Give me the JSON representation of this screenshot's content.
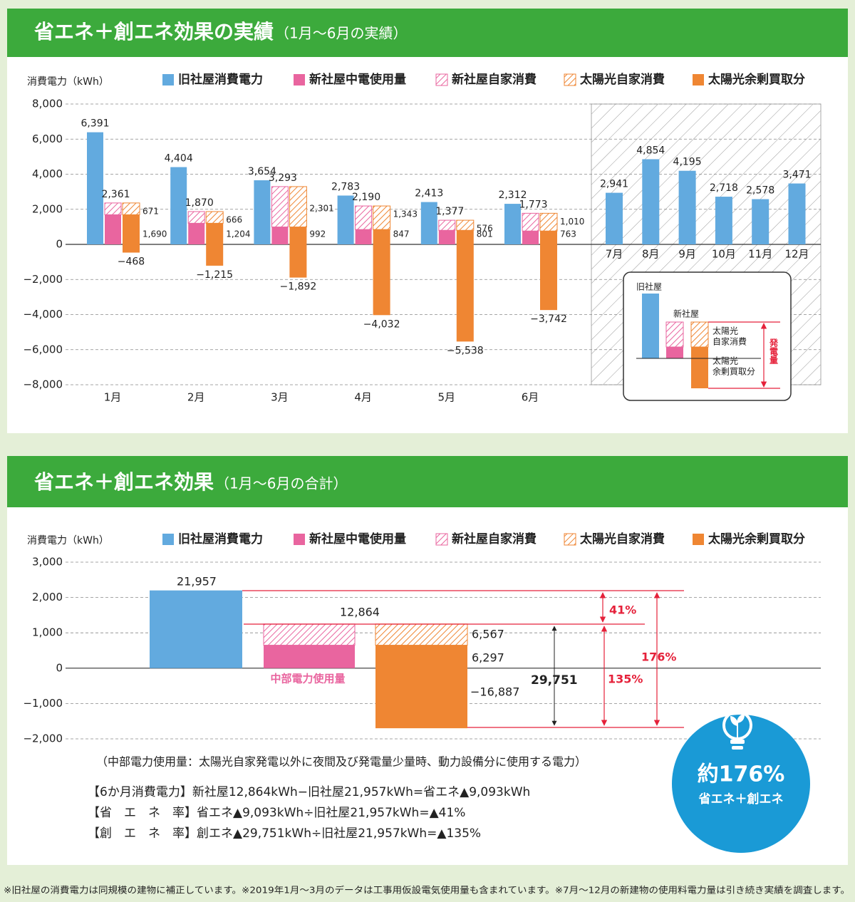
{
  "chart_data": [
    {
      "type": "bar",
      "title": "省エネ＋創エネ効果の実績",
      "subtitle": "（1月～6月の実績）",
      "y_label": "消費電力（kWh）",
      "categories": [
        "1月",
        "2月",
        "3月",
        "4月",
        "5月",
        "6月",
        "7月",
        "8月",
        "9月",
        "10月",
        "11月",
        "12月"
      ],
      "series": [
        {
          "name": "旧社屋消費電力",
          "color": "#62aadf",
          "values": [
            6391,
            4404,
            3654,
            2783,
            2413,
            2312,
            2941,
            4854,
            4195,
            2718,
            2578,
            3471
          ],
          "value_labels": [
            "6,391",
            "4,404",
            "3,654",
            "2,783",
            "2,413",
            "2,312",
            "2,941",
            "4,854",
            "4,195",
            "2,718",
            "2,578",
            "3,471"
          ]
        },
        {
          "name": "新社屋中電使用量",
          "color": "#e9659f",
          "values": [
            1690,
            1204,
            992,
            847,
            801,
            763,
            null,
            null,
            null,
            null,
            null,
            null
          ],
          "value_labels": [
            "1,690",
            "1,204",
            "992",
            "847",
            "801",
            "763",
            null,
            null,
            null,
            null,
            null,
            null
          ]
        },
        {
          "name": "新社屋自家消費",
          "color": "#e9659f",
          "hatch": true,
          "values": [
            671,
            666,
            2301,
            1343,
            576,
            1010,
            null,
            null,
            null,
            null,
            null,
            null
          ]
        },
        {
          "name": "太陽光自家消費",
          "color": "#ef8633",
          "hatch": true,
          "values": [
            671,
            666,
            2301,
            1343,
            576,
            1010,
            null,
            null,
            null,
            null,
            null,
            null
          ],
          "value_labels": [
            "671",
            "666",
            "2,301",
            "1,343",
            "576",
            "1,010",
            null,
            null,
            null,
            null,
            null,
            null
          ]
        },
        {
          "name": "太陽光余剰買取分",
          "color": "#ef8633",
          "values": [
            -468,
            -1215,
            -1892,
            -4032,
            -5538,
            -3742,
            null,
            null,
            null,
            null,
            null,
            null
          ],
          "value_labels": [
            "−468",
            "−1,215",
            "−1,892",
            "−4,032",
            "−5,538",
            "−3,742",
            null,
            null,
            null,
            null,
            null,
            null
          ]
        }
      ],
      "totals": {
        "values": [
          2361,
          1870,
          3293,
          2190,
          1377,
          1773,
          null,
          null,
          null,
          null,
          null,
          null
        ],
        "value_labels": [
          "2,361",
          "1,870",
          "3,293",
          "2,190",
          "1,377",
          "1,773",
          null,
          null,
          null,
          null,
          null,
          null
        ]
      },
      "ylim": [
        -8000,
        8000
      ],
      "yticks": [
        {
          "value": 8000,
          "label": "8,000"
        },
        {
          "value": 6000,
          "label": "6,000"
        },
        {
          "value": 4000,
          "label": "4,000"
        },
        {
          "value": 2000,
          "label": "2,000"
        },
        0,
        {
          "value": -2000,
          "label": "−2,000"
        },
        {
          "value": -4000,
          "label": "−4,000"
        },
        {
          "value": -6000,
          "label": "−6,000"
        },
        {
          "value": -8000,
          "label": "−8,000"
        }
      ],
      "grid": true
    },
    {
      "type": "bar",
      "title": "省エネ＋創エネ効果",
      "subtitle": "（1月～6月の合計）",
      "y_label": "消費電力（kWh）",
      "categories": [
        null
      ],
      "series": [
        {
          "name": "旧社屋消費電力",
          "color": "#62aadf",
          "values": [
            2200
          ]
        },
        {
          "name": "新社屋中電使用量",
          "color": "#e9659f",
          "values": [
            650
          ]
        },
        {
          "name": "新社屋自家消費",
          "color": "#e9659f",
          "hatch": true,
          "values": [
            600
          ]
        },
        {
          "name": "太陽光自家消費",
          "color": "#ef8633",
          "hatch": true,
          "values": [
            600
          ]
        },
        {
          "name": "太陽光余剰買取分",
          "color": "#ef8633",
          "values": [
            -1700
          ]
        }
      ],
      "annotations": [
        "21,957",
        "12,864",
        "6,567",
        "6,297",
        "−16,887",
        "29,751",
        "41%",
        "135%",
        "176%",
        "中部電力使用量"
      ],
      "ylim": [
        -2000,
        3000
      ],
      "yticks": [
        {
          "value": 3000,
          "label": "3,000"
        },
        {
          "value": 2000,
          "label": "2,000"
        },
        {
          "value": 1000,
          "label": "1,000"
        },
        0,
        {
          "value": -1000,
          "label": "−1,000"
        },
        {
          "value": -2000,
          "label": "−2,000"
        }
      ],
      "grid": true
    }
  ],
  "inset": {
    "old": "旧社屋",
    "new": "新社屋",
    "solar_self": [
      "太陽光",
      "自家消費"
    ],
    "solar_surplus": [
      "太陽光",
      "余剰買取分"
    ],
    "generation": "発電量"
  },
  "note": "（中部電力使用量：太陽光自家発電以外に夜間及び発電量少量時、動力設備分に使用する電力）",
  "formulas": [
    "【6か月消費電力】新社屋12,864kWh−旧社屋21,957kWh=省エネ▲9,093kWh",
    "【省　エ　ネ　率】省エネ▲9,093kWh÷旧社屋21,957kWh=▲41%",
    "【創　エ　ネ　率】創エネ▲29,751kWh÷旧社屋21,957kWh=▲135%"
  ],
  "badge": {
    "main": "約176%",
    "sub": "省エネ＋創エネ"
  },
  "footnote": "※旧社屋の消費電力は同規模の建物に補正しています。※2019年1月～3月のデータは工事用仮設電気使用量も含まれています。※7月～12月の新建物の使用料電力量は引き続き実績を調査します。"
}
